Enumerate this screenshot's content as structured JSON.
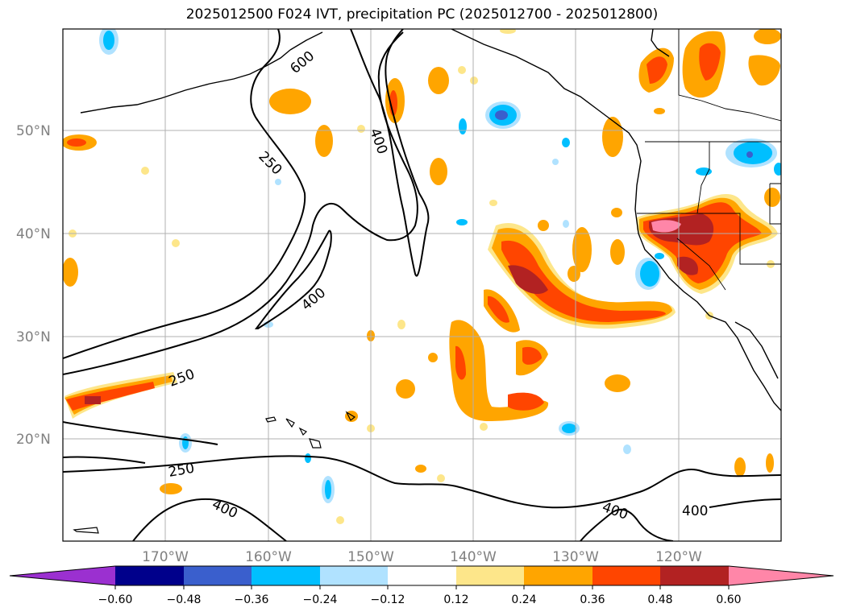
{
  "title": "2025012500 F024 IVT, precipitation PC (2025012700 - 2025012800)",
  "map": {
    "lat_labels": [
      "50°N",
      "40°N",
      "30°N",
      "20°N"
    ],
    "lon_labels": [
      "170°W",
      "160°W",
      "150°W",
      "140°W",
      "130°W",
      "120°W"
    ],
    "ivt_contour_labels": [
      "600",
      "400",
      "250",
      "400",
      "250",
      "250",
      "400",
      "400",
      "400"
    ]
  },
  "colorbar": {
    "ticks": [
      "−0.60",
      "−0.48",
      "−0.36",
      "−0.24",
      "−0.12",
      "0.12",
      "0.24",
      "0.36",
      "0.48",
      "0.60"
    ],
    "colors": [
      "#9b30d0",
      "#00008b",
      "#3a5fcd",
      "#00bfff",
      "#b0e2ff",
      "#ffffff",
      "#fde68a",
      "#ffa500",
      "#ff4500",
      "#b22222",
      "#ff86a8"
    ]
  },
  "legend_colors": {
    "light_yellow": "#fde68a",
    "orange": "#ffa500",
    "orange_red": "#ff4500",
    "dark_red": "#b22222",
    "pink": "#ff86a8",
    "light_blue": "#b0e2ff",
    "deep_sky_blue": "#00bfff",
    "royal_blue": "#3a5fcd"
  }
}
